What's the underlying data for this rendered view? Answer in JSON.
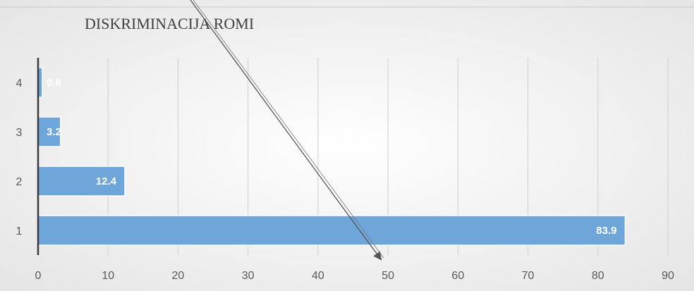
{
  "chart_data": {
    "type": "bar",
    "orientation": "horizontal",
    "title": "DISKRIMINACIJA ROMI",
    "categories": [
      "1",
      "2",
      "3",
      "4"
    ],
    "values": [
      83.9,
      12.4,
      3.2,
      0.6
    ],
    "data_labels": [
      "83.9",
      "12.4",
      "3.2",
      "0.6"
    ],
    "xlim": [
      0,
      90
    ],
    "x_ticks": [
      "0",
      "10",
      "20",
      "30",
      "40",
      "50",
      "60",
      "70",
      "80",
      "90"
    ],
    "grid": "vertical",
    "legend": "none",
    "xlabel": "",
    "ylabel": ""
  },
  "colors": {
    "bar_fill": "#6ea6da",
    "bar_stroke": "#ffffff",
    "grid": "#cfcfcf",
    "axis": "#3a3a3a",
    "annotation_arrow": "#555555"
  }
}
